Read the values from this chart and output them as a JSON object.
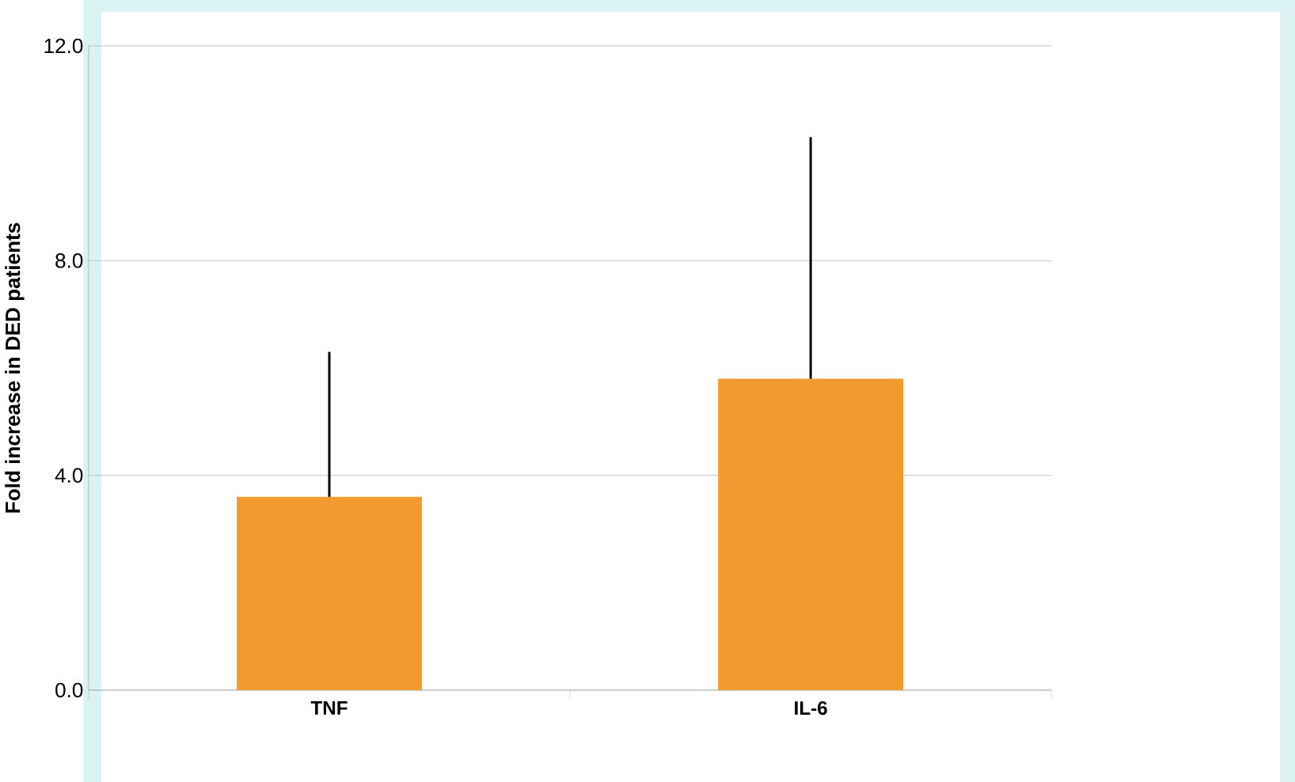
{
  "chart_data": {
    "type": "bar",
    "ylabel": "Fold increase in DED patients",
    "categories": [
      "TNF",
      "IL-6"
    ],
    "values": [
      3.6,
      5.8
    ],
    "color": "#f39a2e",
    "errors": [
      [
        3.6,
        6.3
      ],
      [
        5.8,
        10.3
      ]
    ],
    "ylim": [
      0,
      12
    ],
    "yticks": [
      {
        "value": 0,
        "label": "0.0"
      },
      {
        "value": 4,
        "label": "4.0"
      },
      {
        "value": 8,
        "label": "8.0"
      },
      {
        "value": 12,
        "label": "12.0"
      }
    ],
    "grid": "y"
  }
}
